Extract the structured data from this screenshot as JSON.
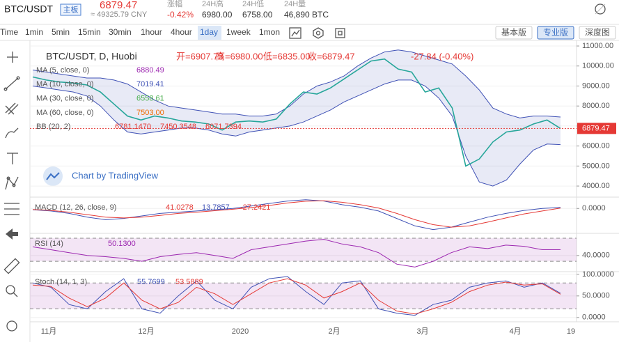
{
  "header": {
    "symbol": "BTC/USDT",
    "board": "主板",
    "price": "6879.47",
    "cny": "≈ 49325.79 CNY",
    "stats": [
      {
        "label": "涨幅",
        "value": "-0.42%"
      },
      {
        "label": "24H高",
        "value": "6980.00"
      },
      {
        "label": "24H低",
        "value": "6758.00"
      },
      {
        "label": "24H量",
        "value": "46,890 BTC"
      }
    ]
  },
  "toolbar": {
    "intervals": [
      "Time",
      "1min",
      "5min",
      "15min",
      "30min",
      "1hour",
      "4hour",
      "1day",
      "1week",
      "1mon"
    ],
    "active": 7,
    "views": [
      "基本版",
      "专业版",
      "深度图"
    ],
    "active_view": 1
  },
  "watermark": "Chart by TradingView",
  "x_labels": [
    "11月",
    "12月",
    "2020",
    "2月",
    "3月",
    "4月",
    "19"
  ],
  "chart_data": [
    {
      "type": "line",
      "title": "BTC/USDT, D, Huobi",
      "ohlc": [
        "开=6907.73",
        "高=6980.00",
        "低=6835.00",
        "收=6879.47",
        "-27.84 (-0.40%)"
      ],
      "indicators": [
        {
          "name": "MA (5, close, 0)",
          "values": [
            "6880.49"
          ],
          "color": "#9c27b0"
        },
        {
          "name": "MA (10, close, 0)",
          "values": [
            "7019.41"
          ],
          "color": "#3f51b5"
        },
        {
          "name": "MA (30, close, 0)",
          "values": [
            "6558.61"
          ],
          "color": "#4caf50"
        },
        {
          "name": "MA (60, close, 0)",
          "values": [
            "7503.00"
          ],
          "color": "#ef6c00"
        },
        {
          "name": "BB (20, 2)",
          "values": [
            "6781.1470",
            "7450.3548",
            "6071.7394"
          ],
          "color": "#e53935"
        }
      ],
      "ylim": [
        3550,
        11210
      ],
      "yticks": [
        {
          "value": 4000,
          "label": "4000.00"
        },
        {
          "value": 5000,
          "label": "5000.00"
        },
        {
          "value": 6000,
          "label": "6000.00"
        },
        {
          "value": 7000,
          "label": "7000.00"
        },
        {
          "value": 8000,
          "label": "8000.00"
        },
        {
          "value": 9000,
          "label": "9000.00"
        },
        {
          "value": 10000,
          "label": "10000.00"
        },
        {
          "value": 11000,
          "label": "11000.00"
        }
      ],
      "grid": true,
      "last": 6879.47,
      "last_color": "#e53935",
      "band": {
        "color": "#3f51b5",
        "upper": [
          9800,
          9700,
          9600,
          9500,
          9400,
          9400,
          9300,
          9100,
          8700,
          8300,
          8000,
          7900,
          7800,
          7700,
          7600,
          7600,
          7500,
          7500,
          7600,
          8000,
          8600,
          9000,
          9200,
          9500,
          10000,
          10400,
          10700,
          10800,
          10700,
          10500,
          10300,
          10100,
          9500,
          8800,
          7900,
          7600,
          7400,
          7500,
          7500,
          7450
        ],
        "lower": [
          9000,
          8900,
          8800,
          8700,
          8500,
          8000,
          7300,
          6700,
          6600,
          6700,
          6800,
          6900,
          6900,
          6800,
          6600,
          6500,
          6700,
          6800,
          6900,
          7000,
          7200,
          7500,
          7800,
          8200,
          8500,
          8800,
          9100,
          9300,
          9300,
          9000,
          8400,
          7500,
          5500,
          4200,
          4000,
          4300,
          5100,
          5800,
          6100,
          6070
        ]
      },
      "series": [
        {
          "color": "#26a69a",
          "values": [
            9450,
            9300,
            9200,
            9150,
            9050,
            8700,
            8100,
            7500,
            7300,
            7500,
            7400,
            7250,
            7200,
            7100,
            6800,
            7200,
            7250,
            7200,
            7350,
            8100,
            8700,
            8600,
            8900,
            9350,
            9800,
            10250,
            10350,
            9850,
            9700,
            8700,
            8900,
            7900,
            5000,
            5350,
            6200,
            6700,
            6800,
            7100,
            7300,
            6880
          ]
        }
      ]
    },
    {
      "type": "line",
      "title": "MACD (12, 26, close, 9)",
      "legend_values": [
        {
          "text": "41.0278",
          "color": "#e53935"
        },
        {
          "text": "13.7857",
          "color": "#3f51b5"
        },
        {
          "text": "-27.2421",
          "color": "#e53935"
        }
      ],
      "ylim": [
        -1000,
        400
      ],
      "yticks": [
        {
          "value": 0,
          "label": "0.0000"
        }
      ],
      "grid": true,
      "series": [
        {
          "color": "#3f51b5",
          "values": [
            -50,
            -100,
            -200,
            -350,
            -450,
            -400,
            -300,
            -200,
            -150,
            -100,
            -50,
            0,
            100,
            200,
            300,
            350,
            300,
            150,
            50,
            -100,
            -400,
            -700,
            -850,
            -750,
            -550,
            -350,
            -200,
            -80,
            0,
            41
          ]
        },
        {
          "color": "#e53935",
          "values": [
            -40,
            -80,
            -150,
            -250,
            -350,
            -380,
            -350,
            -280,
            -200,
            -150,
            -90,
            -30,
            40,
            120,
            220,
            290,
            310,
            250,
            150,
            20,
            -200,
            -450,
            -650,
            -750,
            -700,
            -550,
            -380,
            -220,
            -100,
            14
          ]
        }
      ]
    },
    {
      "type": "line",
      "title": "RSI (14)",
      "legend_values": [
        {
          "text": "50.1300",
          "color": "#9c27b0"
        }
      ],
      "ylim": [
        12,
        76
      ],
      "yticks": [
        {
          "value": 40,
          "label": "40.0000"
        }
      ],
      "grid": true,
      "band": [
        30,
        70
      ],
      "band_color": "#9c27b0",
      "series": [
        {
          "color": "#9c27b0",
          "values": [
            55,
            50,
            45,
            40,
            38,
            35,
            30,
            38,
            42,
            45,
            40,
            35,
            50,
            55,
            60,
            65,
            68,
            60,
            55,
            45,
            25,
            20,
            30,
            45,
            55,
            52,
            58,
            56,
            50,
            50
          ]
        }
      ]
    },
    {
      "type": "line",
      "title": "Stoch (14, 1, 3)",
      "legend_values": [
        {
          "text": "55.7699",
          "color": "#3f51b5"
        },
        {
          "text": "53.5889",
          "color": "#e53935"
        }
      ],
      "ylim": [
        -10,
        103
      ],
      "yticks": [
        {
          "value": 0,
          "label": "0.0000"
        },
        {
          "value": 50,
          "label": "50.0000"
        },
        {
          "value": 100,
          "label": "100.0000"
        }
      ],
      "grid": true,
      "band": [
        20,
        80
      ],
      "band_color": "#9c27b0",
      "series": [
        {
          "color": "#3f51b5",
          "values": [
            80,
            70,
            30,
            20,
            60,
            90,
            20,
            10,
            50,
            85,
            40,
            20,
            70,
            90,
            95,
            60,
            30,
            80,
            85,
            20,
            10,
            5,
            30,
            40,
            70,
            80,
            85,
            70,
            80,
            56
          ]
        },
        {
          "color": "#e53935",
          "values": [
            75,
            72,
            45,
            25,
            45,
            80,
            40,
            20,
            35,
            70,
            55,
            30,
            55,
            80,
            90,
            75,
            45,
            60,
            80,
            40,
            15,
            8,
            20,
            35,
            60,
            75,
            82,
            75,
            78,
            54
          ]
        }
      ]
    }
  ]
}
